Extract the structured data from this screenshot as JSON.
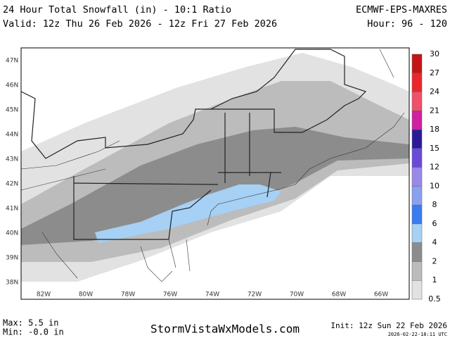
{
  "header": {
    "title": "24 Hour Total Snowfall (in) - 10:1 Ratio",
    "valid": "Valid: 12z Thu 26 Feb 2026 - 12z Fri 27 Feb 2026",
    "model": "ECMWF-EPS-MAXRES",
    "hour": "Hour: 96 - 120"
  },
  "map": {
    "lat_labels": [
      "47N",
      "46N",
      "45N",
      "44N",
      "43N",
      "42N",
      "41N",
      "40N",
      "39N",
      "38N"
    ],
    "lon_labels": [
      "82W",
      "80W",
      "78W",
      "76W",
      "74W",
      "72W",
      "70W",
      "68W",
      "66W"
    ]
  },
  "colorbar": {
    "levels": [
      "30",
      "27",
      "24",
      "21",
      "18",
      "15",
      "12",
      "10",
      "8",
      "6",
      "4",
      "2",
      "1",
      "0.5"
    ],
    "colors": [
      "#c41414",
      "#e8282c",
      "#f0506a",
      "#d01fa0",
      "#2a1a9a",
      "#6a4ad8",
      "#9a88e8",
      "#8aa0f0",
      "#3a7cf0",
      "#a6d0f4",
      "#8c8c8c",
      "#bcbcbc",
      "#e2e2e2"
    ]
  },
  "footer": {
    "max": "Max: 5.5 in",
    "min": "Min: -0.0 in",
    "site": "StormVistaWxModels.com",
    "init": "Init: 12z Sun 22 Feb 2026",
    "stamp": "2026-02-22-18:11 UTC"
  }
}
